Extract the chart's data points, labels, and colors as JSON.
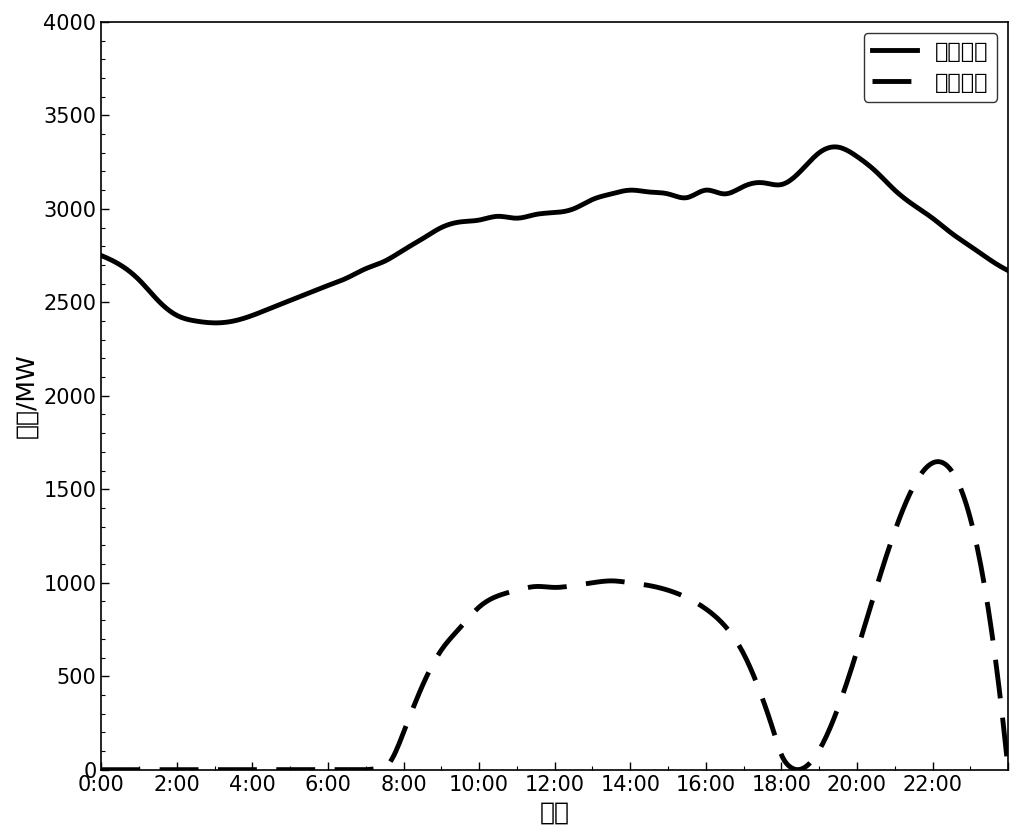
{
  "title": "",
  "xlabel": "时刻",
  "ylabel": "功率/MW",
  "xlim": [
    0,
    24
  ],
  "ylim": [
    0,
    4000
  ],
  "yticks": [
    0,
    500,
    1000,
    1500,
    2000,
    2500,
    3000,
    3500,
    4000
  ],
  "xticks": [
    0,
    2,
    4,
    6,
    8,
    10,
    12,
    14,
    16,
    18,
    20,
    22,
    24
  ],
  "xtick_labels": [
    "0:00",
    "2:00",
    "4:00",
    "6:00",
    "8:00",
    "10:00",
    "12:00",
    "14:00",
    "16:00",
    "18:00",
    "20:00",
    "22:00",
    ""
  ],
  "load_x": [
    0,
    0.5,
    1,
    1.5,
    2,
    2.5,
    3,
    3.5,
    4,
    4.5,
    5,
    5.5,
    6,
    6.5,
    7,
    7.5,
    8,
    8.5,
    9,
    9.5,
    10,
    10.5,
    11,
    11.5,
    12,
    12.5,
    13,
    13.5,
    14,
    14.5,
    15,
    15.5,
    16,
    16.5,
    17,
    17.5,
    18,
    18.5,
    19,
    19.5,
    20,
    20.5,
    21,
    21.5,
    22,
    22.5,
    23,
    23.5,
    24
  ],
  "load_y": [
    2750,
    2700,
    2620,
    2510,
    2430,
    2400,
    2390,
    2400,
    2430,
    2470,
    2510,
    2550,
    2590,
    2630,
    2680,
    2720,
    2780,
    2840,
    2900,
    2930,
    2940,
    2960,
    2950,
    2970,
    2980,
    3000,
    3050,
    3080,
    3100,
    3090,
    3080,
    3060,
    3100,
    3080,
    3120,
    3140,
    3130,
    3200,
    3300,
    3330,
    3280,
    3200,
    3100,
    3020,
    2950,
    2870,
    2800,
    2730,
    2670
  ],
  "pv_x": [
    0,
    7.0,
    7.3,
    7.6,
    8.0,
    8.5,
    9.0,
    9.5,
    10.0,
    10.5,
    11.0,
    11.5,
    12.0,
    12.5,
    13.0,
    13.5,
    14.0,
    14.5,
    15.0,
    15.5,
    16.0,
    16.5,
    17.0,
    17.5,
    17.8,
    18.0,
    18.2,
    18.5,
    24
  ],
  "pv_y": [
    0,
    0,
    5,
    30,
    200,
    450,
    640,
    760,
    870,
    930,
    960,
    980,
    975,
    985,
    1000,
    1010,
    1000,
    985,
    960,
    920,
    860,
    770,
    620,
    380,
    200,
    80,
    20,
    2,
    0
  ],
  "line_color": "#000000",
  "load_linewidth": 3.5,
  "pv_linewidth": 3.5,
  "load_label": "负荷曲线",
  "pv_label": "光伏曲线",
  "background_color": "#ffffff",
  "legend_fontsize": 16,
  "axis_fontsize": 18,
  "tick_fontsize": 15
}
